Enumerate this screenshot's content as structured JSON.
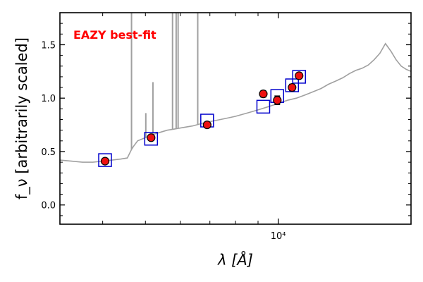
{
  "chart_data": {
    "type": "scatter",
    "title": "",
    "annotation": "EAZY best-fit",
    "xlabel": "λ [Å]",
    "ylabel": "f_ν [arbitrarily scaled]",
    "xscale": "log",
    "xlim": [
      3200,
      20000
    ],
    "ylim": [
      -0.18,
      1.8
    ],
    "x_ticks": [
      {
        "value": 10000,
        "label": "10⁴"
      }
    ],
    "y_ticks": [
      {
        "value": 0.0,
        "label": "0.0"
      },
      {
        "value": 0.5,
        "label": "0.5"
      },
      {
        "value": 1.0,
        "label": "1.0"
      },
      {
        "value": 1.5,
        "label": "1.5"
      }
    ],
    "grid": false,
    "colors": {
      "model": "#a0a0a0",
      "observed_fill": "#ee1111",
      "model_box": "#0000cc",
      "annotation": "#ff0000"
    },
    "series": [
      {
        "kind": "model_spectrum",
        "x": [
          3200,
          3400,
          3600,
          3800,
          4000,
          4200,
          4400,
          4550,
          4650,
          4700,
          4800,
          5000,
          5200,
          5400,
          5600,
          5800,
          6000,
          6400,
          6800,
          7200,
          7600,
          8000,
          8500,
          9000,
          9500,
          10000,
          10500,
          11000,
          11500,
          12000,
          12500,
          13000,
          13500,
          14000,
          14500,
          15000,
          15500,
          16000,
          16500,
          17000,
          17500,
          18000,
          18500,
          19000,
          19500,
          20000
        ],
        "y": [
          0.42,
          0.41,
          0.4,
          0.4,
          0.41,
          0.42,
          0.43,
          0.44,
          0.52,
          0.55,
          0.6,
          0.63,
          0.66,
          0.68,
          0.7,
          0.71,
          0.72,
          0.74,
          0.77,
          0.79,
          0.81,
          0.83,
          0.86,
          0.89,
          0.92,
          0.95,
          0.98,
          1.0,
          1.03,
          1.06,
          1.09,
          1.13,
          1.16,
          1.19,
          1.23,
          1.26,
          1.28,
          1.31,
          1.36,
          1.42,
          1.51,
          1.44,
          1.36,
          1.3,
          1.27,
          1.25
        ]
      },
      {
        "kind": "emission_lines",
        "x": [
          4650,
          5010,
          5200,
          5760,
          5870,
          5930,
          6570
        ],
        "y": [
          2.0,
          0.86,
          1.15,
          2.0,
          2.0,
          2.0,
          2.0
        ]
      },
      {
        "kind": "model_photometry",
        "x": [
          4050,
          5150,
          6900,
          9250,
          9950,
          10750,
          11150
        ],
        "y": [
          0.42,
          0.62,
          0.79,
          0.92,
          1.02,
          1.12,
          1.2
        ]
      },
      {
        "kind": "observed_photometry",
        "x": [
          4050,
          5150,
          6900,
          9250,
          9950,
          10750,
          11150
        ],
        "y": [
          0.41,
          0.63,
          0.75,
          1.04,
          0.98,
          1.1,
          1.21
        ],
        "yerr": [
          0.02,
          0.02,
          0.02,
          0.03,
          0.04,
          0.03,
          0.02
        ]
      }
    ]
  }
}
